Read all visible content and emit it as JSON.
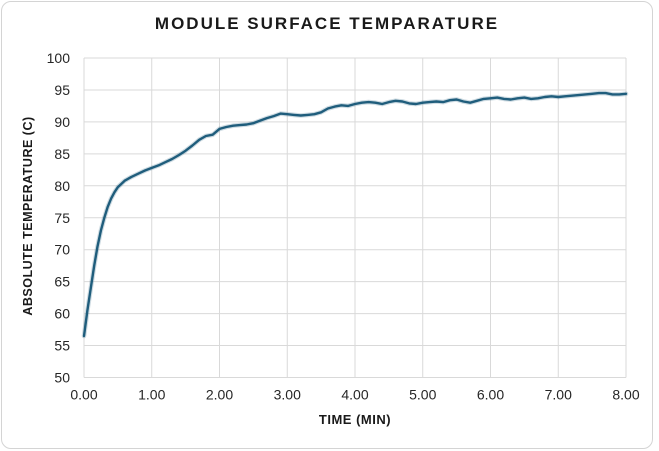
{
  "chart_data": {
    "type": "line",
    "title": "MODULE SURFACE TEMPARATURE",
    "xlabel": "TIME (MIN)",
    "ylabel": "ABSOLUTE TEMPERATURE (C)",
    "xlim": [
      0,
      8
    ],
    "ylim": [
      50,
      100
    ],
    "grid": true,
    "legend": "none",
    "x_tick_values": [
      0,
      1,
      2,
      3,
      4,
      5,
      6,
      7,
      8
    ],
    "x_tick_labels": [
      "0.00",
      "1.00",
      "2.00",
      "3.00",
      "4.00",
      "5.00",
      "6.00",
      "7.00",
      "8.00"
    ],
    "y_tick_values": [
      50,
      55,
      60,
      65,
      70,
      75,
      80,
      85,
      90,
      95,
      100
    ],
    "y_tick_labels": [
      "50",
      "55",
      "60",
      "65",
      "70",
      "75",
      "80",
      "85",
      "90",
      "95",
      "100"
    ],
    "colors": {
      "line": "#1f5d7c",
      "grid": "#d9d9d9",
      "tick_text": "#262626",
      "title_text": "#1a1a1a",
      "card_border": "#d4d4d4",
      "background": "#ffffff"
    },
    "series": [
      {
        "name": "Module surface temperature",
        "x": [
          0.0,
          0.05,
          0.1,
          0.15,
          0.2,
          0.25,
          0.3,
          0.35,
          0.4,
          0.45,
          0.5,
          0.6,
          0.7,
          0.8,
          0.9,
          1.0,
          1.1,
          1.2,
          1.3,
          1.4,
          1.5,
          1.6,
          1.7,
          1.8,
          1.9,
          2.0,
          2.1,
          2.2,
          2.3,
          2.4,
          2.5,
          2.6,
          2.7,
          2.8,
          2.9,
          3.0,
          3.1,
          3.2,
          3.3,
          3.4,
          3.5,
          3.6,
          3.7,
          3.8,
          3.9,
          4.0,
          4.1,
          4.2,
          4.3,
          4.4,
          4.5,
          4.6,
          4.7,
          4.8,
          4.9,
          5.0,
          5.1,
          5.2,
          5.3,
          5.4,
          5.5,
          5.6,
          5.7,
          5.8,
          5.9,
          6.0,
          6.1,
          6.2,
          6.3,
          6.4,
          6.5,
          6.6,
          6.7,
          6.8,
          6.9,
          7.0,
          7.1,
          7.2,
          7.3,
          7.4,
          7.5,
          7.6,
          7.7,
          7.8,
          7.9,
          8.0
        ],
        "y": [
          56.5,
          60.5,
          64.0,
          67.5,
          70.5,
          73.0,
          75.0,
          76.7,
          78.0,
          79.0,
          79.8,
          80.8,
          81.4,
          81.9,
          82.4,
          82.8,
          83.2,
          83.7,
          84.2,
          84.8,
          85.5,
          86.3,
          87.2,
          87.8,
          88.0,
          88.9,
          89.2,
          89.4,
          89.5,
          89.6,
          89.8,
          90.2,
          90.6,
          90.9,
          91.3,
          91.2,
          91.1,
          91.0,
          91.1,
          91.2,
          91.5,
          92.1,
          92.4,
          92.6,
          92.5,
          92.8,
          93.0,
          93.1,
          93.0,
          92.8,
          93.1,
          93.3,
          93.2,
          92.9,
          92.8,
          93.0,
          93.1,
          93.2,
          93.1,
          93.4,
          93.5,
          93.2,
          93.0,
          93.3,
          93.6,
          93.7,
          93.8,
          93.6,
          93.5,
          93.7,
          93.8,
          93.6,
          93.7,
          93.9,
          94.0,
          93.9,
          94.0,
          94.1,
          94.2,
          94.3,
          94.4,
          94.5,
          94.5,
          94.3,
          94.3,
          94.4
        ]
      }
    ]
  }
}
